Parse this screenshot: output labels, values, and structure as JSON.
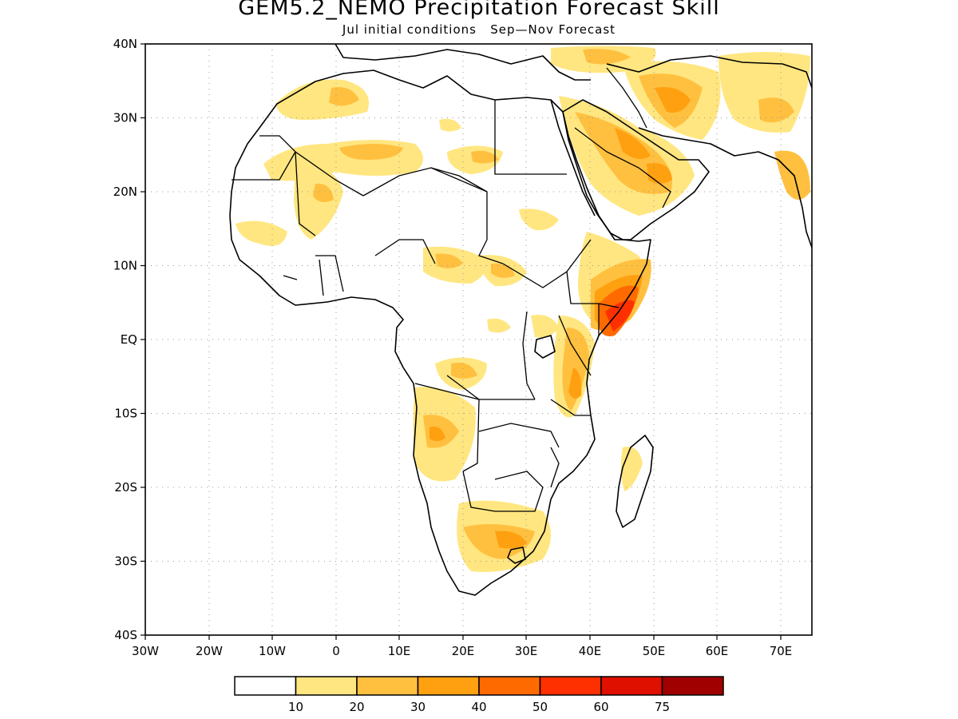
{
  "title": "GEM5.2_NEMO Precipitation Forecast Skill",
  "subtitle": "Jul initial conditions   Sep—Nov Forecast",
  "map": {
    "region": "Africa, Arabian Peninsula and western Indian Ocean",
    "lat_range": [
      -40,
      40
    ],
    "lon_range": [
      -30,
      75
    ],
    "lat_tick_labels": [
      "40N",
      "30N",
      "20N",
      "10N",
      "EQ",
      "10S",
      "20S",
      "30S",
      "40S"
    ],
    "lon_tick_labels": [
      "30W",
      "20W",
      "10W",
      "0",
      "10E",
      "20E",
      "30E",
      "40E",
      "50E",
      "60E",
      "70E"
    ],
    "gridlines": "dotted"
  },
  "colorbar": {
    "levels": [
      "10",
      "20",
      "30",
      "40",
      "50",
      "60",
      "75"
    ],
    "colors": [
      "#ffffff",
      "#ffe680",
      "#ffc040",
      "#ffa010",
      "#ff6a00",
      "#ff3000",
      "#e01000",
      "#a00000"
    ]
  },
  "colors": {
    "land_outline": "#000000",
    "grid": "#999999"
  }
}
